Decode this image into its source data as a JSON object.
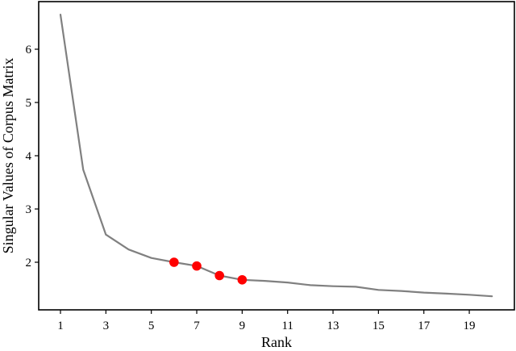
{
  "chart_data": {
    "type": "line",
    "title": "",
    "xlabel": "Rank",
    "ylabel": "Singular Values of Corpus Matrix",
    "x": [
      1,
      2,
      3,
      4,
      5,
      6,
      7,
      8,
      9,
      10,
      11,
      12,
      13,
      14,
      15,
      16,
      17,
      18,
      19,
      20
    ],
    "series": [
      {
        "name": "Singular values",
        "color": "#808080",
        "values": [
          6.65,
          3.74,
          2.52,
          2.24,
          2.08,
          2.0,
          1.93,
          1.75,
          1.67,
          1.65,
          1.62,
          1.57,
          1.55,
          1.54,
          1.48,
          1.46,
          1.43,
          1.41,
          1.39,
          1.36
        ]
      }
    ],
    "highlighted_points": {
      "color": "#ff0000",
      "x": [
        6,
        7,
        8,
        9
      ],
      "values": [
        2.0,
        1.93,
        1.75,
        1.67
      ]
    },
    "xticks": [
      1,
      3,
      5,
      7,
      9,
      11,
      13,
      15,
      17,
      19
    ],
    "yticks": [
      2,
      3,
      4,
      5,
      6
    ],
    "xlim": [
      0.05,
      21.0
    ],
    "ylim": [
      1.1,
      6.85
    ],
    "grid": false,
    "legend": null
  }
}
